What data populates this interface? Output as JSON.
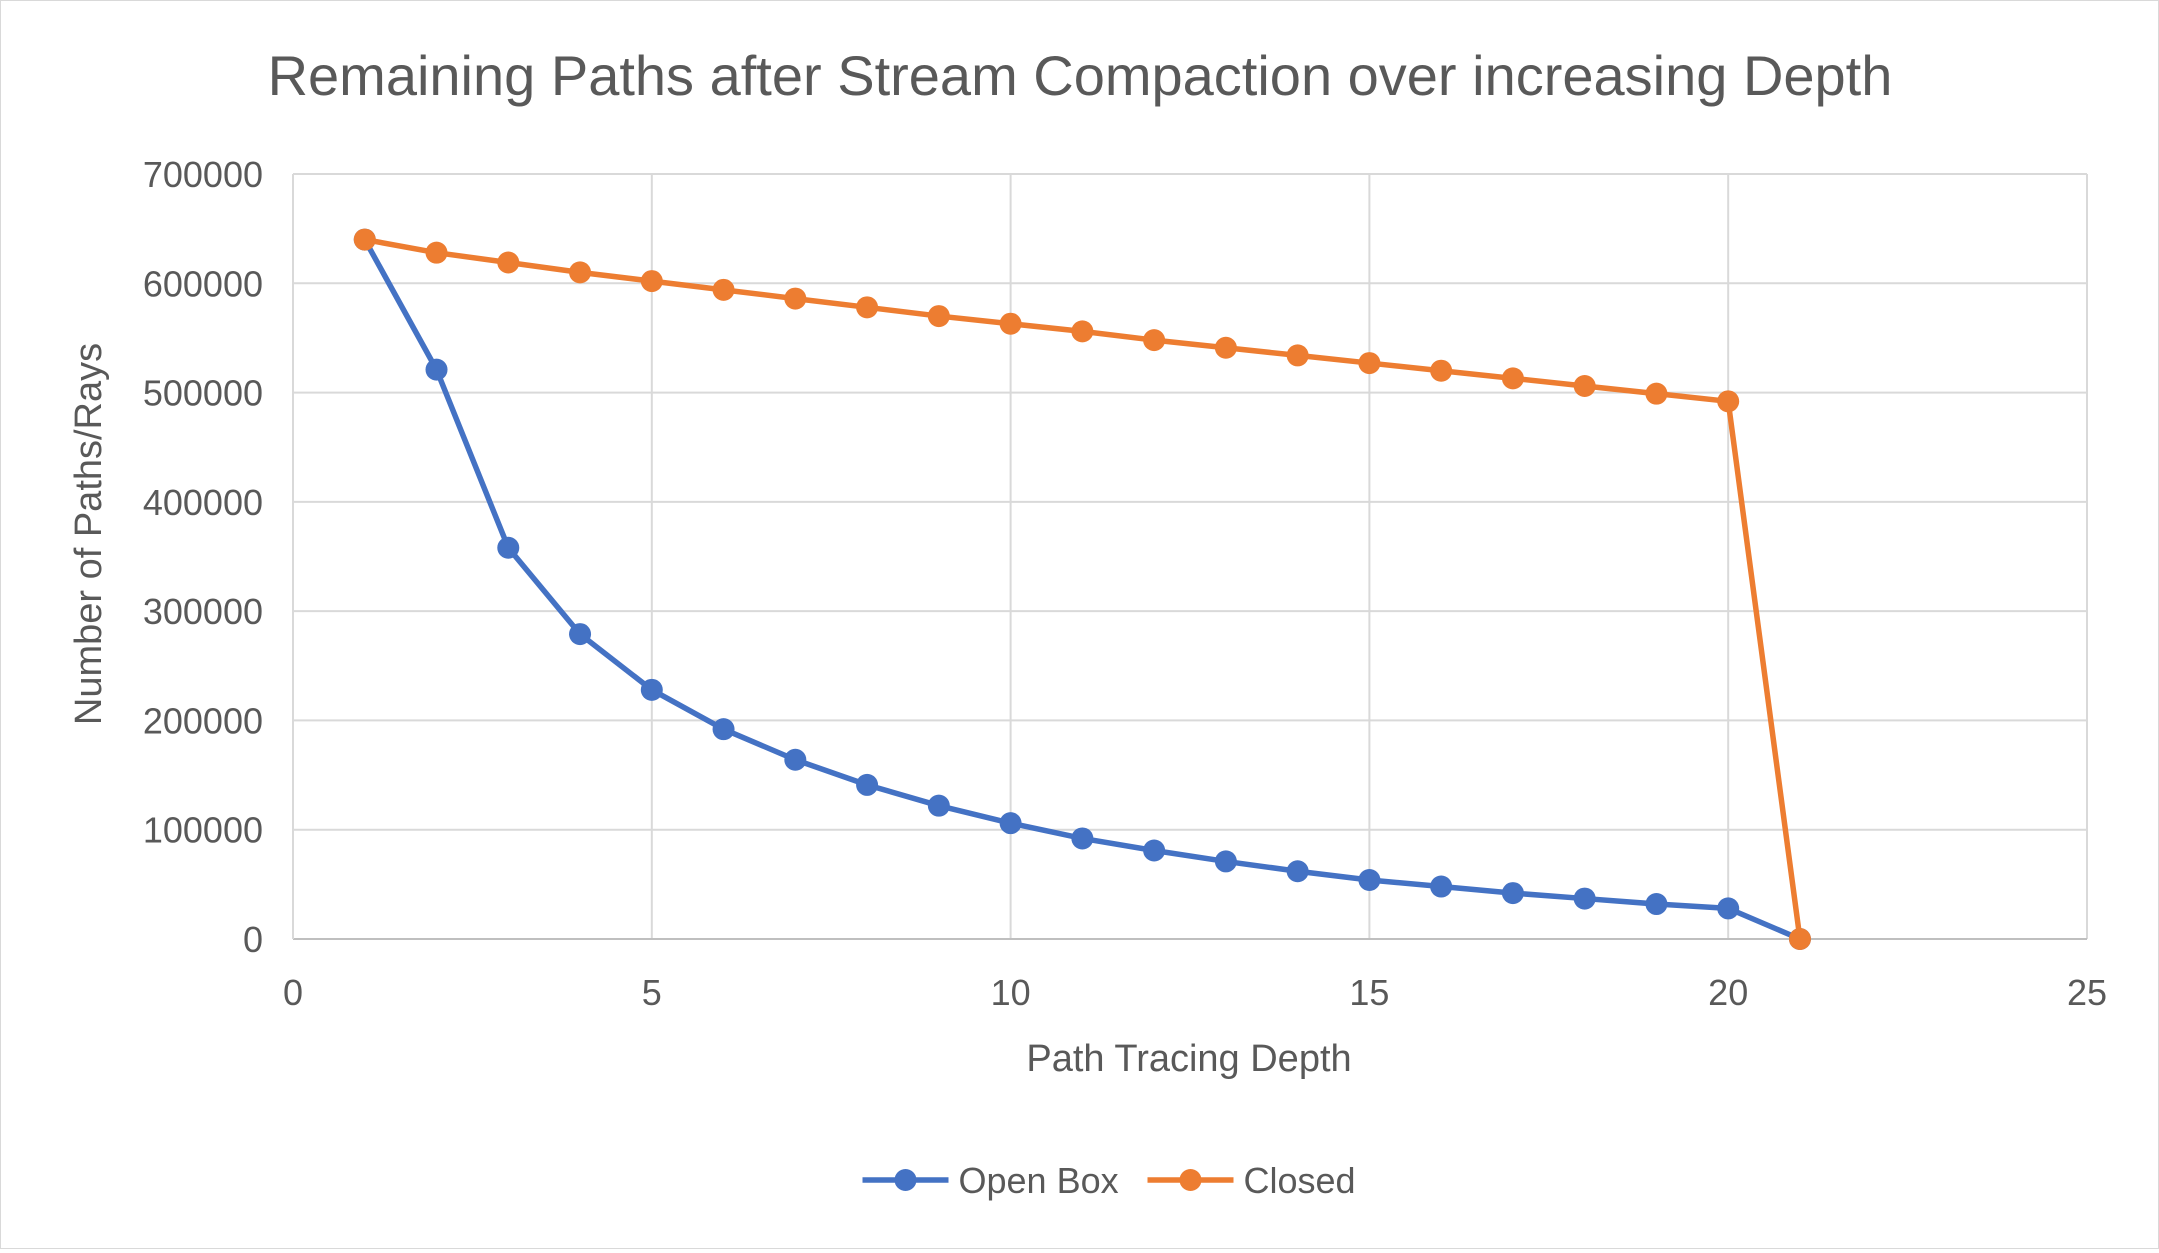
{
  "chart_data": {
    "type": "line",
    "title": "Remaining Paths after Stream Compaction over increasing Depth",
    "xlabel": "Path Tracing Depth",
    "ylabel": "Number of Paths/Rays",
    "xlim": [
      0,
      25
    ],
    "ylim": [
      0,
      700000
    ],
    "x_ticks": [
      0,
      5,
      10,
      15,
      20,
      25
    ],
    "y_ticks": [
      0,
      100000,
      200000,
      300000,
      400000,
      500000,
      600000,
      700000
    ],
    "x_tick_labels": [
      "0",
      "5",
      "10",
      "15",
      "20",
      "25"
    ],
    "y_tick_labels": [
      "0",
      "100000",
      "200000",
      "300000",
      "400000",
      "500000",
      "600000",
      "700000"
    ],
    "grid": true,
    "legend_position": "bottom",
    "series": [
      {
        "name": "Open Box",
        "color": "#4472c4",
        "x": [
          1,
          2,
          3,
          4,
          5,
          6,
          7,
          8,
          9,
          10,
          11,
          12,
          13,
          14,
          15,
          16,
          17,
          18,
          19,
          20,
          21
        ],
        "values": [
          640000,
          521000,
          358000,
          279000,
          228000,
          192000,
          164000,
          141000,
          122000,
          106000,
          92000,
          81000,
          71000,
          62000,
          54000,
          48000,
          42000,
          37000,
          32000,
          28000,
          0
        ]
      },
      {
        "name": "Closed",
        "color": "#ed7d31",
        "x": [
          1,
          2,
          3,
          4,
          5,
          6,
          7,
          8,
          9,
          10,
          11,
          12,
          13,
          14,
          15,
          16,
          17,
          18,
          19,
          20,
          21
        ],
        "values": [
          640000,
          628000,
          619000,
          610000,
          602000,
          594000,
          586000,
          578000,
          570000,
          563000,
          556000,
          548000,
          541000,
          534000,
          527000,
          520000,
          513000,
          506000,
          499000,
          492000,
          0
        ]
      }
    ]
  }
}
